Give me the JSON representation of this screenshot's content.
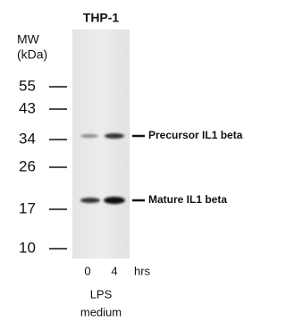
{
  "title": "THP-1",
  "mw_label": [
    "MW",
    "(kDa)"
  ],
  "markers": [
    "55",
    "43",
    "34",
    "26",
    "17",
    "10"
  ],
  "lanes": [
    "0",
    "4"
  ],
  "lane_unit": "hrs",
  "condition": [
    "LPS",
    "medium"
  ],
  "bands": [
    "Precursor IL1 beta",
    "Mature IL1 beta"
  ]
}
